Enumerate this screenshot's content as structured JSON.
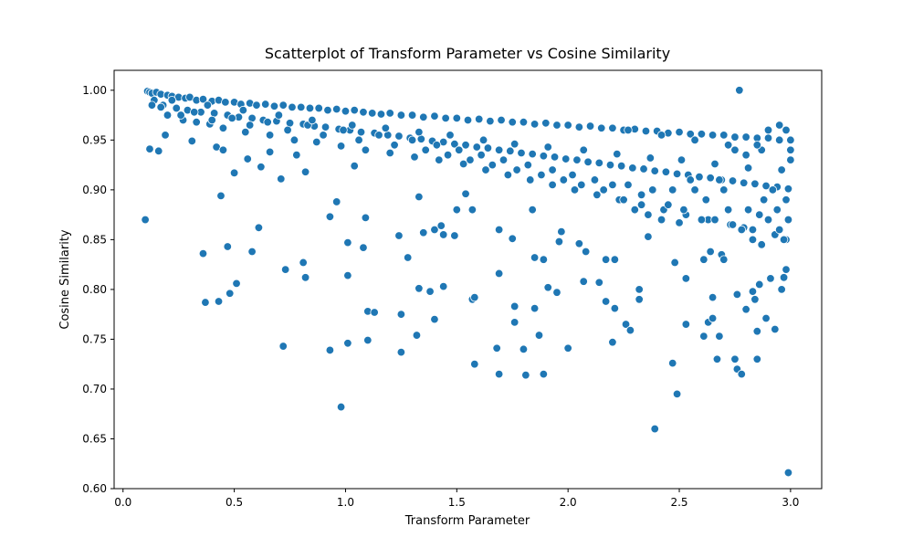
{
  "chart_data": {
    "type": "scatter",
    "title": "Scatterplot of Transform Parameter vs Cosine Similarity",
    "xlabel": "Transform Parameter",
    "ylabel": "Cosine Similarity",
    "xlim": [
      -0.04,
      3.14
    ],
    "ylim": [
      0.6,
      1.02
    ],
    "xticks": [
      0.0,
      0.5,
      1.0,
      1.5,
      2.0,
      2.5,
      3.0
    ],
    "xtick_labels": [
      "0.0",
      "0.5",
      "1.0",
      "1.5",
      "2.0",
      "2.5",
      "3.0"
    ],
    "yticks": [
      0.6,
      0.65,
      0.7,
      0.75,
      0.8,
      0.85,
      0.9,
      0.95,
      1.0
    ],
    "ytick_labels": [
      "0.60",
      "0.65",
      "0.70",
      "0.75",
      "0.80",
      "0.85",
      "0.90",
      "0.95",
      "1.00"
    ],
    "grid": false,
    "color": "#1f77b4",
    "points": [
      [
        0.11,
        0.999
      ],
      [
        0.12,
        0.998
      ],
      [
        0.13,
        0.997
      ],
      [
        0.15,
        0.998
      ],
      [
        0.17,
        0.996
      ],
      [
        0.2,
        0.995
      ],
      [
        0.22,
        0.994
      ],
      [
        0.25,
        0.993
      ],
      [
        0.28,
        0.992
      ],
      [
        0.3,
        0.993
      ],
      [
        0.33,
        0.99
      ],
      [
        0.36,
        0.991
      ],
      [
        0.4,
        0.989
      ],
      [
        0.43,
        0.99
      ],
      [
        0.46,
        0.988
      ],
      [
        0.5,
        0.988
      ],
      [
        0.53,
        0.986
      ],
      [
        0.57,
        0.987
      ],
      [
        0.6,
        0.985
      ],
      [
        0.64,
        0.986
      ],
      [
        0.68,
        0.984
      ],
      [
        0.72,
        0.985
      ],
      [
        0.76,
        0.983
      ],
      [
        0.8,
        0.983
      ],
      [
        0.84,
        0.982
      ],
      [
        0.88,
        0.982
      ],
      [
        0.92,
        0.98
      ],
      [
        0.96,
        0.981
      ],
      [
        1.0,
        0.979
      ],
      [
        1.04,
        0.98
      ],
      [
        1.08,
        0.978
      ],
      [
        1.12,
        0.977
      ],
      [
        1.16,
        0.976
      ],
      [
        1.2,
        0.977
      ],
      [
        1.25,
        0.975
      ],
      [
        1.3,
        0.975
      ],
      [
        1.35,
        0.973
      ],
      [
        1.4,
        0.974
      ],
      [
        1.45,
        0.972
      ],
      [
        1.5,
        0.972
      ],
      [
        1.55,
        0.97
      ],
      [
        1.6,
        0.971
      ],
      [
        1.65,
        0.969
      ],
      [
        1.7,
        0.97
      ],
      [
        1.75,
        0.968
      ],
      [
        1.8,
        0.968
      ],
      [
        1.85,
        0.966
      ],
      [
        1.9,
        0.967
      ],
      [
        1.95,
        0.965
      ],
      [
        2.0,
        0.965
      ],
      [
        2.05,
        0.963
      ],
      [
        2.1,
        0.964
      ],
      [
        2.15,
        0.962
      ],
      [
        2.2,
        0.962
      ],
      [
        2.25,
        0.96
      ],
      [
        2.3,
        0.961
      ],
      [
        2.35,
        0.959
      ],
      [
        2.4,
        0.959
      ],
      [
        2.45,
        0.957
      ],
      [
        2.5,
        0.958
      ],
      [
        2.55,
        0.956
      ],
      [
        2.6,
        0.956
      ],
      [
        2.65,
        0.955
      ],
      [
        2.7,
        0.955
      ],
      [
        2.75,
        0.953
      ],
      [
        2.8,
        0.953
      ],
      [
        2.85,
        0.952
      ],
      [
        2.9,
        0.952
      ],
      [
        2.95,
        0.95
      ],
      [
        3.0,
        0.95
      ],
      [
        0.14,
        0.99
      ],
      [
        0.18,
        0.985
      ],
      [
        0.24,
        0.982
      ],
      [
        0.29,
        0.98
      ],
      [
        0.35,
        0.978
      ],
      [
        0.41,
        0.977
      ],
      [
        0.47,
        0.975
      ],
      [
        0.52,
        0.973
      ],
      [
        0.58,
        0.972
      ],
      [
        0.63,
        0.97
      ],
      [
        0.69,
        0.969
      ],
      [
        0.75,
        0.967
      ],
      [
        0.81,
        0.966
      ],
      [
        0.86,
        0.964
      ],
      [
        0.91,
        0.963
      ],
      [
        0.97,
        0.961
      ],
      [
        1.02,
        0.96
      ],
      [
        1.07,
        0.958
      ],
      [
        1.13,
        0.957
      ],
      [
        1.19,
        0.955
      ],
      [
        1.24,
        0.954
      ],
      [
        1.29,
        0.952
      ],
      [
        1.34,
        0.951
      ],
      [
        1.39,
        0.949
      ],
      [
        1.44,
        0.948
      ],
      [
        1.49,
        0.946
      ],
      [
        1.54,
        0.945
      ],
      [
        1.59,
        0.943
      ],
      [
        1.64,
        0.942
      ],
      [
        1.69,
        0.94
      ],
      [
        1.74,
        0.939
      ],
      [
        1.79,
        0.937
      ],
      [
        1.84,
        0.936
      ],
      [
        1.89,
        0.934
      ],
      [
        1.94,
        0.933
      ],
      [
        1.99,
        0.931
      ],
      [
        2.04,
        0.93
      ],
      [
        2.09,
        0.928
      ],
      [
        2.14,
        0.927
      ],
      [
        2.19,
        0.925
      ],
      [
        2.24,
        0.924
      ],
      [
        2.29,
        0.922
      ],
      [
        2.34,
        0.921
      ],
      [
        2.39,
        0.919
      ],
      [
        2.44,
        0.918
      ],
      [
        2.49,
        0.916
      ],
      [
        2.54,
        0.915
      ],
      [
        2.59,
        0.913
      ],
      [
        2.64,
        0.912
      ],
      [
        2.69,
        0.91
      ],
      [
        2.74,
        0.909
      ],
      [
        2.79,
        0.907
      ],
      [
        2.84,
        0.906
      ],
      [
        2.89,
        0.904
      ],
      [
        2.94,
        0.903
      ],
      [
        2.99,
        0.901
      ],
      [
        0.2,
        0.975
      ],
      [
        0.27,
        0.97
      ],
      [
        0.33,
        0.968
      ],
      [
        0.39,
        0.966
      ],
      [
        0.45,
        0.962
      ],
      [
        0.55,
        0.958
      ],
      [
        0.66,
        0.955
      ],
      [
        0.77,
        0.95
      ],
      [
        0.87,
        0.948
      ],
      [
        0.98,
        0.944
      ],
      [
        1.09,
        0.94
      ],
      [
        1.2,
        0.937
      ],
      [
        1.31,
        0.933
      ],
      [
        1.42,
        0.93
      ],
      [
        1.53,
        0.926
      ],
      [
        1.63,
        0.92
      ],
      [
        1.73,
        0.915
      ],
      [
        1.83,
        0.91
      ],
      [
        1.93,
        0.905
      ],
      [
        2.03,
        0.9
      ],
      [
        2.13,
        0.895
      ],
      [
        2.23,
        0.89
      ],
      [
        2.33,
        0.885
      ],
      [
        2.43,
        0.88
      ],
      [
        2.53,
        0.875
      ],
      [
        2.63,
        0.87
      ],
      [
        2.73,
        0.865
      ],
      [
        2.83,
        0.86
      ],
      [
        2.93,
        0.855
      ],
      [
        2.98,
        0.85
      ],
      [
        0.1,
        0.87
      ],
      [
        0.12,
        0.941
      ],
      [
        0.16,
        0.939
      ],
      [
        0.19,
        0.955
      ],
      [
        0.31,
        0.949
      ],
      [
        0.36,
        0.836
      ],
      [
        0.37,
        0.787
      ],
      [
        0.42,
        0.943
      ],
      [
        0.43,
        0.788
      ],
      [
        0.44,
        0.894
      ],
      [
        0.45,
        0.94
      ],
      [
        0.47,
        0.843
      ],
      [
        0.48,
        0.796
      ],
      [
        0.5,
        0.917
      ],
      [
        0.51,
        0.806
      ],
      [
        0.56,
        0.931
      ],
      [
        0.58,
        0.838
      ],
      [
        0.61,
        0.862
      ],
      [
        0.62,
        0.923
      ],
      [
        0.66,
        0.938
      ],
      [
        0.71,
        0.911
      ],
      [
        0.72,
        0.743
      ],
      [
        0.73,
        0.82
      ],
      [
        0.78,
        0.935
      ],
      [
        0.82,
        0.918
      ],
      [
        0.82,
        0.812
      ],
      [
        0.81,
        0.827
      ],
      [
        0.93,
        0.739
      ],
      [
        0.93,
        0.873
      ],
      [
        0.96,
        0.888
      ],
      [
        0.98,
        0.682
      ],
      [
        1.01,
        0.814
      ],
      [
        1.01,
        0.847
      ],
      [
        1.01,
        0.746
      ],
      [
        1.04,
        0.924
      ],
      [
        1.08,
        0.842
      ],
      [
        1.09,
        0.872
      ],
      [
        1.1,
        0.778
      ],
      [
        1.1,
        0.749
      ],
      [
        1.13,
        0.777
      ],
      [
        1.24,
        0.854
      ],
      [
        1.25,
        0.775
      ],
      [
        1.25,
        0.737
      ],
      [
        1.28,
        0.832
      ],
      [
        1.32,
        0.754
      ],
      [
        1.33,
        0.893
      ],
      [
        1.33,
        0.801
      ],
      [
        1.35,
        0.857
      ],
      [
        1.38,
        0.798
      ],
      [
        1.4,
        0.77
      ],
      [
        1.4,
        0.86
      ],
      [
        1.43,
        0.864
      ],
      [
        1.44,
        0.803
      ],
      [
        1.44,
        0.855
      ],
      [
        1.49,
        0.854
      ],
      [
        1.5,
        0.88
      ],
      [
        1.54,
        0.896
      ],
      [
        1.57,
        0.88
      ],
      [
        1.57,
        0.79
      ],
      [
        1.58,
        0.792
      ],
      [
        1.58,
        0.725
      ],
      [
        1.68,
        0.741
      ],
      [
        1.69,
        0.86
      ],
      [
        1.69,
        0.816
      ],
      [
        1.69,
        0.715
      ],
      [
        1.75,
        0.851
      ],
      [
        1.76,
        0.767
      ],
      [
        1.76,
        0.783
      ],
      [
        1.8,
        0.74
      ],
      [
        1.81,
        0.714
      ],
      [
        1.84,
        0.88
      ],
      [
        1.85,
        0.832
      ],
      [
        1.85,
        0.781
      ],
      [
        1.87,
        0.754
      ],
      [
        1.89,
        0.83
      ],
      [
        1.89,
        0.715
      ],
      [
        1.91,
        0.802
      ],
      [
        1.95,
        0.797
      ],
      [
        1.96,
        0.848
      ],
      [
        1.97,
        0.858
      ],
      [
        2.0,
        0.741
      ],
      [
        2.05,
        0.846
      ],
      [
        2.07,
        0.808
      ],
      [
        2.08,
        0.838
      ],
      [
        2.14,
        0.807
      ],
      [
        2.17,
        0.788
      ],
      [
        2.17,
        0.83
      ],
      [
        2.2,
        0.747
      ],
      [
        2.21,
        0.83
      ],
      [
        2.21,
        0.781
      ],
      [
        2.26,
        0.765
      ],
      [
        2.28,
        0.759
      ],
      [
        2.32,
        0.79
      ],
      [
        2.32,
        0.8
      ],
      [
        2.36,
        0.853
      ],
      [
        2.39,
        0.66
      ],
      [
        2.47,
        0.726
      ],
      [
        2.48,
        0.827
      ],
      [
        2.49,
        0.695
      ],
      [
        2.5,
        0.867
      ],
      [
        2.53,
        0.765
      ],
      [
        2.53,
        0.811
      ],
      [
        2.61,
        0.753
      ],
      [
        2.61,
        0.83
      ],
      [
        2.63,
        0.767
      ],
      [
        2.64,
        0.838
      ],
      [
        2.65,
        0.792
      ],
      [
        2.65,
        0.771
      ],
      [
        2.67,
        0.73
      ],
      [
        2.68,
        0.753
      ],
      [
        2.69,
        0.835
      ],
      [
        2.7,
        0.83
      ],
      [
        2.75,
        0.73
      ],
      [
        2.76,
        0.72
      ],
      [
        2.76,
        0.795
      ],
      [
        2.77,
        1.0
      ],
      [
        2.78,
        0.715
      ],
      [
        2.8,
        0.78
      ],
      [
        2.83,
        0.798
      ],
      [
        2.84,
        0.79
      ],
      [
        2.85,
        0.758
      ],
      [
        2.85,
        0.73
      ],
      [
        2.86,
        0.805
      ],
      [
        2.89,
        0.771
      ],
      [
        2.91,
        0.811
      ],
      [
        2.93,
        0.76
      ],
      [
        2.96,
        0.8
      ],
      [
        2.97,
        0.812
      ],
      [
        2.98,
        0.82
      ],
      [
        2.99,
        0.616
      ],
      [
        2.99,
        0.87
      ],
      [
        2.98,
        0.89
      ],
      [
        2.97,
        0.85
      ],
      [
        2.95,
        0.86
      ],
      [
        2.94,
        0.88
      ],
      [
        2.92,
        0.9
      ],
      [
        2.9,
        0.87
      ],
      [
        2.88,
        0.89
      ],
      [
        2.87,
        0.845
      ],
      [
        2.86,
        0.875
      ],
      [
        2.83,
        0.85
      ],
      [
        2.81,
        0.88
      ],
      [
        2.79,
        0.862
      ],
      [
        2.78,
        0.86
      ],
      [
        2.74,
        0.865
      ],
      [
        2.72,
        0.88
      ],
      [
        2.7,
        0.9
      ],
      [
        2.68,
        0.91
      ],
      [
        2.66,
        0.87
      ],
      [
        2.62,
        0.89
      ],
      [
        2.6,
        0.87
      ],
      [
        2.57,
        0.9
      ],
      [
        2.55,
        0.91
      ],
      [
        2.52,
        0.88
      ],
      [
        2.47,
        0.9
      ],
      [
        2.45,
        0.885
      ],
      [
        2.42,
        0.87
      ],
      [
        2.38,
        0.9
      ],
      [
        2.36,
        0.875
      ],
      [
        2.33,
        0.895
      ],
      [
        2.3,
        0.88
      ],
      [
        2.27,
        0.905
      ],
      [
        2.25,
        0.89
      ],
      [
        2.2,
        0.905
      ],
      [
        2.16,
        0.9
      ],
      [
        2.12,
        0.91
      ],
      [
        2.06,
        0.905
      ],
      [
        2.02,
        0.915
      ],
      [
        1.98,
        0.91
      ],
      [
        1.93,
        0.92
      ],
      [
        1.88,
        0.915
      ],
      [
        1.82,
        0.925
      ],
      [
        1.77,
        0.92
      ],
      [
        1.71,
        0.93
      ],
      [
        1.66,
        0.925
      ],
      [
        1.61,
        0.935
      ],
      [
        1.56,
        0.93
      ],
      [
        1.51,
        0.94
      ],
      [
        1.46,
        0.935
      ],
      [
        1.41,
        0.945
      ],
      [
        1.36,
        0.94
      ],
      [
        1.3,
        0.95
      ],
      [
        1.22,
        0.945
      ],
      [
        1.15,
        0.955
      ],
      [
        1.06,
        0.95
      ],
      [
        0.99,
        0.96
      ],
      [
        0.9,
        0.955
      ],
      [
        0.83,
        0.965
      ],
      [
        0.74,
        0.96
      ],
      [
        0.65,
        0.968
      ],
      [
        0.57,
        0.965
      ],
      [
        0.49,
        0.972
      ],
      [
        0.4,
        0.97
      ],
      [
        0.32,
        0.978
      ],
      [
        0.26,
        0.975
      ],
      [
        0.17,
        0.983
      ],
      [
        0.13,
        0.985
      ],
      [
        0.22,
        0.99
      ],
      [
        0.38,
        0.985
      ],
      [
        0.54,
        0.98
      ],
      [
        0.7,
        0.975
      ],
      [
        0.85,
        0.97
      ],
      [
        1.03,
        0.965
      ],
      [
        1.18,
        0.962
      ],
      [
        1.33,
        0.958
      ],
      [
        1.47,
        0.955
      ],
      [
        1.62,
        0.95
      ],
      [
        1.76,
        0.946
      ],
      [
        1.91,
        0.943
      ],
      [
        2.07,
        0.94
      ],
      [
        2.22,
        0.936
      ],
      [
        2.37,
        0.932
      ],
      [
        2.51,
        0.93
      ],
      [
        2.66,
        0.926
      ],
      [
        2.81,
        0.922
      ],
      [
        2.96,
        0.92
      ],
      [
        2.27,
        0.96
      ],
      [
        2.42,
        0.955
      ],
      [
        2.57,
        0.95
      ],
      [
        2.72,
        0.945
      ],
      [
        2.87,
        0.94
      ],
      [
        3.0,
        0.94
      ],
      [
        3.0,
        0.93
      ],
      [
        2.98,
        0.96
      ],
      [
        2.95,
        0.965
      ],
      [
        2.9,
        0.96
      ],
      [
        2.85,
        0.945
      ],
      [
        2.8,
        0.935
      ],
      [
        2.75,
        0.94
      ]
    ]
  }
}
